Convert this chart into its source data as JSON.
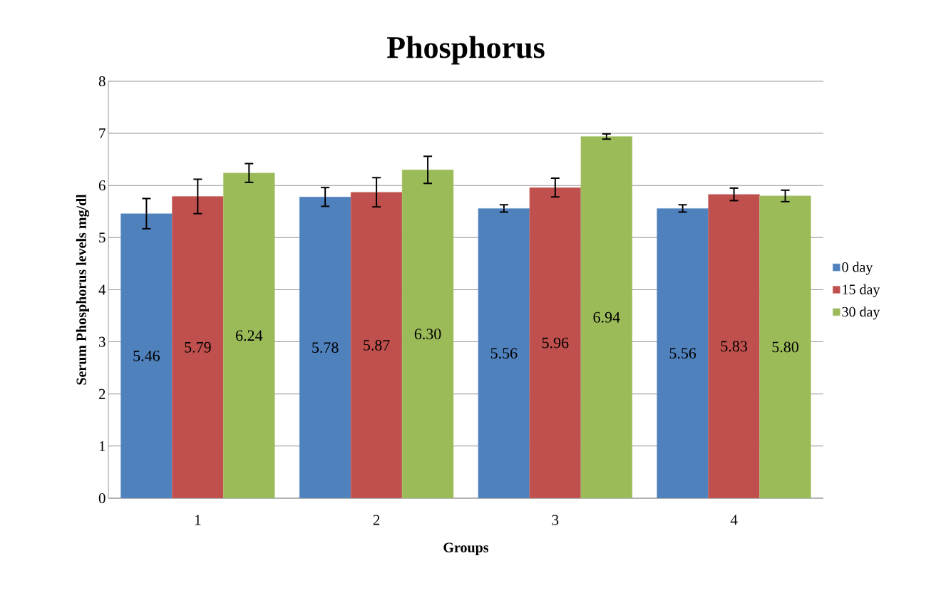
{
  "chart_data": {
    "type": "bar",
    "title": "Phosphorus",
    "xlabel": "Groups",
    "ylabel": "Serum Phosphorus levels  mg/dl",
    "categories": [
      "1",
      "2",
      "3",
      "4"
    ],
    "series": [
      {
        "name": "0 day",
        "color": "#4f81bd",
        "values": [
          5.46,
          5.78,
          5.56,
          5.56
        ],
        "errors": [
          0.29,
          0.18,
          0.07,
          0.07
        ],
        "value_labels": [
          "5.46",
          "5.78",
          "5.56",
          "5.56"
        ]
      },
      {
        "name": "15 day",
        "color": "#c0504d",
        "values": [
          5.79,
          5.87,
          5.96,
          5.83
        ],
        "errors": [
          0.33,
          0.28,
          0.18,
          0.12
        ],
        "value_labels": [
          "5.79",
          "5.87",
          "5.96",
          "5.83"
        ]
      },
      {
        "name": "30 day",
        "color": "#9bbb59",
        "values": [
          6.24,
          6.3,
          6.94,
          5.8
        ],
        "errors": [
          0.18,
          0.26,
          0.05,
          0.11
        ],
        "value_labels": [
          "6.24",
          "6.30",
          "6.94",
          "5.80"
        ]
      }
    ],
    "ylim": [
      0,
      8
    ],
    "yticks": [
      0,
      1,
      2,
      3,
      4,
      5,
      6,
      7,
      8
    ],
    "grid": "y",
    "legend": "right"
  }
}
